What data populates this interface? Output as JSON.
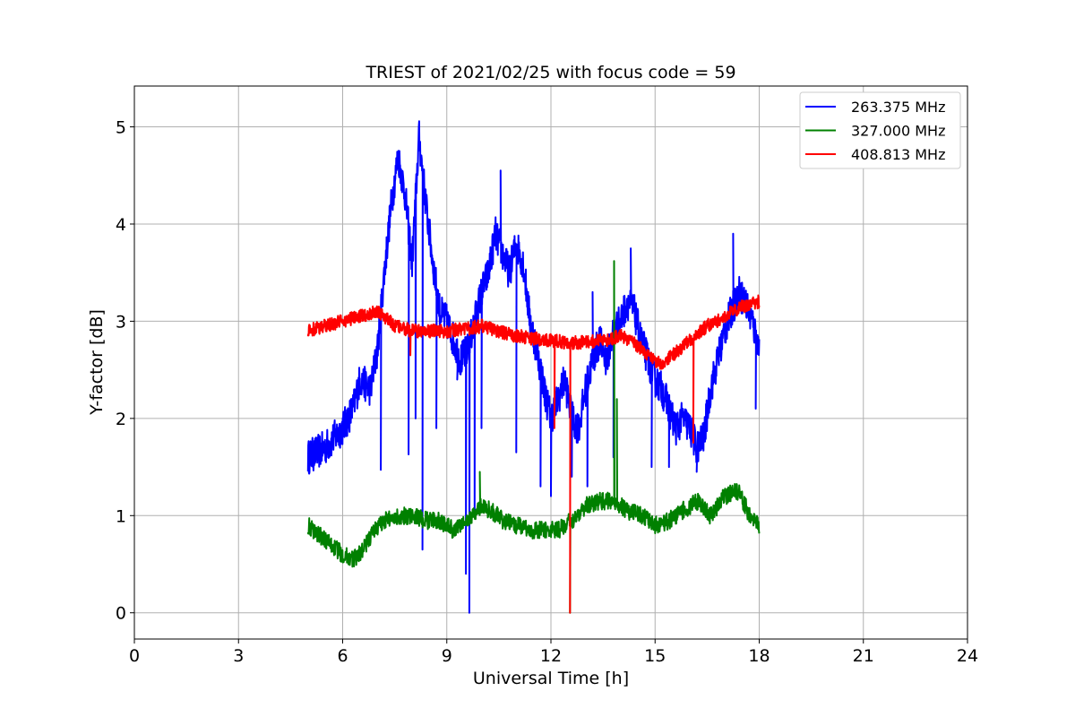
{
  "chart_data": {
    "type": "line",
    "title": "TRIEST of 2021/02/25 with focus code = 59",
    "xlabel": "Universal Time [h]",
    "ylabel": "Y-factor [dB]",
    "xlim": [
      0,
      24
    ],
    "ylim": [
      -0.27,
      5.42
    ],
    "xticks": [
      0,
      3,
      6,
      9,
      12,
      15,
      18,
      21,
      24
    ],
    "yticks": [
      0,
      1,
      2,
      3,
      4,
      5
    ],
    "grid": true,
    "legend_position": "top-right",
    "series": [
      {
        "name": "263.375 MHz",
        "color": "#0000ff",
        "noise": 0.18,
        "x": [
          5.0,
          5.5,
          6.0,
          6.3,
          6.5,
          6.8,
          7.0,
          7.2,
          7.4,
          7.6,
          7.8,
          8.0,
          8.2,
          8.4,
          8.6,
          8.8,
          9.0,
          9.2,
          9.4,
          9.6,
          9.8,
          10.0,
          10.2,
          10.4,
          10.6,
          10.8,
          11.0,
          11.2,
          11.4,
          11.6,
          11.8,
          12.0,
          12.2,
          12.4,
          12.6,
          12.8,
          13.0,
          13.2,
          13.4,
          13.6,
          13.8,
          14.0,
          14.2,
          14.4,
          14.6,
          14.8,
          15.0,
          15.2,
          15.4,
          15.6,
          15.8,
          16.0,
          16.2,
          16.4,
          16.6,
          16.8,
          17.0,
          17.2,
          17.4,
          17.6,
          17.8,
          18.0
        ],
        "y": [
          1.6,
          1.7,
          1.9,
          2.1,
          2.4,
          2.3,
          2.7,
          3.5,
          4.2,
          4.7,
          4.3,
          3.6,
          4.9,
          4.2,
          3.6,
          3.1,
          3.0,
          2.8,
          2.6,
          2.7,
          3.0,
          3.3,
          3.5,
          3.9,
          3.7,
          3.5,
          3.8,
          3.6,
          3.0,
          2.7,
          2.3,
          2.0,
          2.2,
          2.4,
          2.0,
          1.9,
          2.3,
          2.6,
          2.8,
          2.6,
          2.9,
          3.0,
          3.2,
          3.1,
          2.8,
          2.6,
          2.4,
          2.3,
          2.1,
          1.9,
          2.0,
          1.9,
          1.7,
          1.8,
          2.3,
          2.6,
          2.9,
          3.1,
          3.3,
          3.2,
          3.0,
          2.7
        ],
        "spikes": [
          [
            7.1,
            1.47
          ],
          [
            7.9,
            1.63
          ],
          [
            8.1,
            2.0
          ],
          [
            8.3,
            0.65
          ],
          [
            8.7,
            1.9
          ],
          [
            9.3,
            2.4
          ],
          [
            9.55,
            0.4
          ],
          [
            9.65,
            0.0
          ],
          [
            9.8,
            1.0
          ],
          [
            10.0,
            1.9
          ],
          [
            10.55,
            4.55
          ],
          [
            11.0,
            1.65
          ],
          [
            11.7,
            1.3
          ],
          [
            12.0,
            1.2
          ],
          [
            12.6,
            1.4
          ],
          [
            13.05,
            1.3
          ],
          [
            13.2,
            3.3
          ],
          [
            13.8,
            1.6
          ],
          [
            14.3,
            3.75
          ],
          [
            14.9,
            1.5
          ],
          [
            15.4,
            1.5
          ],
          [
            16.2,
            1.45
          ],
          [
            17.25,
            3.9
          ],
          [
            17.9,
            2.1
          ]
        ]
      },
      {
        "name": "327.000 MHz",
        "color": "#008000",
        "noise": 0.09,
        "x": [
          5.0,
          5.5,
          6.0,
          6.3,
          6.6,
          6.9,
          7.2,
          7.6,
          8.0,
          8.4,
          8.8,
          9.2,
          9.6,
          10.0,
          10.3,
          10.6,
          11.0,
          11.4,
          11.8,
          12.2,
          12.6,
          13.0,
          13.4,
          13.8,
          14.2,
          14.6,
          15.0,
          15.4,
          15.8,
          16.2,
          16.6,
          17.0,
          17.4,
          17.6,
          17.8,
          18.0
        ],
        "y": [
          0.9,
          0.75,
          0.6,
          0.55,
          0.65,
          0.85,
          0.95,
          1.0,
          1.0,
          0.95,
          0.95,
          0.85,
          0.95,
          1.1,
          1.05,
          0.95,
          0.9,
          0.85,
          0.85,
          0.85,
          0.95,
          1.1,
          1.15,
          1.15,
          1.05,
          1.0,
          0.9,
          0.95,
          1.05,
          1.15,
          1.0,
          1.2,
          1.25,
          1.1,
          0.95,
          0.9
        ],
        "spikes": [
          [
            12.55,
            0.0
          ],
          [
            13.82,
            3.62
          ],
          [
            13.9,
            2.2
          ],
          [
            9.95,
            1.45
          ]
        ]
      },
      {
        "name": "408.813 MHz",
        "color": "#ff0000",
        "noise": 0.07,
        "x": [
          5.0,
          5.5,
          6.0,
          6.5,
          7.0,
          7.2,
          7.5,
          8.0,
          8.5,
          9.0,
          9.5,
          10.0,
          10.5,
          11.0,
          11.5,
          12.0,
          12.5,
          13.0,
          13.5,
          14.0,
          14.5,
          15.0,
          15.2,
          15.5,
          16.0,
          16.5,
          17.0,
          17.5,
          18.0
        ],
        "y": [
          2.9,
          2.95,
          3.0,
          3.05,
          3.1,
          3.05,
          2.95,
          2.9,
          2.9,
          2.9,
          2.92,
          2.95,
          2.9,
          2.85,
          2.82,
          2.8,
          2.78,
          2.78,
          2.8,
          2.85,
          2.75,
          2.6,
          2.55,
          2.65,
          2.8,
          2.95,
          3.05,
          3.15,
          3.2
        ],
        "spikes": [
          [
            12.55,
            0.0
          ],
          [
            12.1,
            1.9
          ],
          [
            16.1,
            1.75
          ],
          [
            7.95,
            2.65
          ]
        ]
      }
    ]
  }
}
